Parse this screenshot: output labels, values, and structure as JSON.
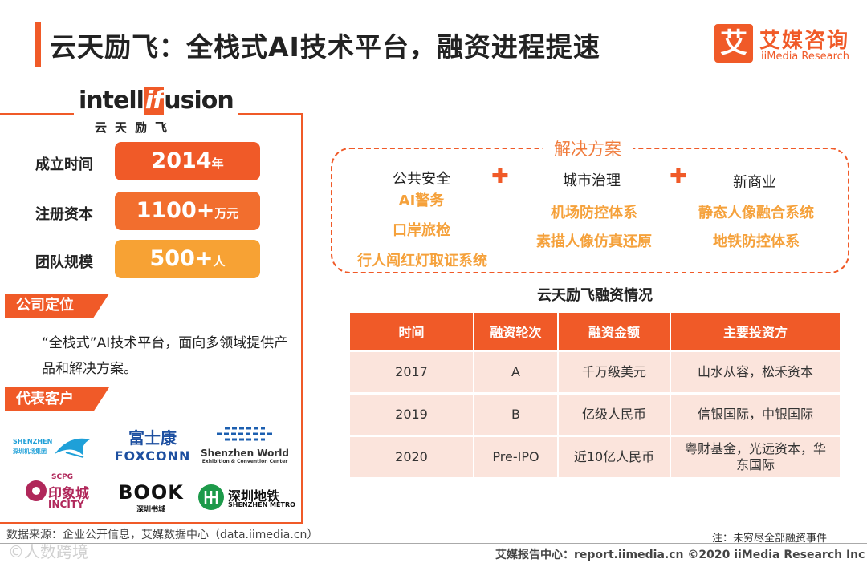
{
  "header": {
    "title": "云天励飞：全栈式AI技术平台，融资进程提速",
    "logo_mark": "艾",
    "logo_cn": "艾媒咨询",
    "logo_en": "iiMedia Research"
  },
  "brand": {
    "en_pre": "intell",
    "en_hl": "if",
    "en_post": "usion",
    "cn": "云天励飞"
  },
  "stats": [
    {
      "label": "成立时间",
      "value": "2014",
      "unit": "年",
      "color": "#f05a28"
    },
    {
      "label": "注册资本",
      "value": "1100+",
      "unit": "万元",
      "color": "#f26e2e"
    },
    {
      "label": "团队规模",
      "value": "500+",
      "unit": "人",
      "color": "#f7a234"
    }
  ],
  "positioning": {
    "tag": "公司定位",
    "text": "“全栈式”AI技术平台，面向多领域提供产品和解决方案。"
  },
  "clients": {
    "tag": "代表客户",
    "items": [
      {
        "name": "SHENZHEN",
        "sub": "深圳机场集团"
      },
      {
        "name": "富士康",
        "sub": "FOXCONN"
      },
      {
        "name": "Shenzhen World",
        "sub": "Exhibition & Convention Center"
      },
      {
        "name": "印象城",
        "sub": "INCITY",
        "extra": "SCPG"
      },
      {
        "name": "BOOK",
        "sub": "深圳书城"
      },
      {
        "name": "深圳地铁",
        "sub": "SHENZHEN METRO"
      }
    ]
  },
  "solutions": {
    "title": "解决方案",
    "plus": "✚",
    "columns": [
      {
        "head": "公共安全",
        "items": [
          "AI警务",
          "口岸旅检",
          "行人闯红灯取证系统"
        ]
      },
      {
        "head": "城市治理",
        "items": [
          "机场防控体系",
          "素描人像仿真还原"
        ]
      },
      {
        "head": "新商业",
        "items": [
          "静态人像融合系统",
          "地铁防控体系"
        ]
      }
    ]
  },
  "financing": {
    "title": "云天励飞融资情况",
    "headers": [
      "时间",
      "融资轮次",
      "融资金额",
      "主要投资方"
    ],
    "rows": [
      [
        "2017",
        "A",
        "千万级美元",
        "山水从容，松禾资本"
      ],
      [
        "2019",
        "B",
        "亿级人民币",
        "信银国际，中银国际"
      ],
      [
        "2020",
        "Pre-IPO",
        "近10亿人民币",
        "粤财基金，光远资本，华东国际"
      ]
    ]
  },
  "footer": {
    "source": "数据来源：企业公开信息，艾媒数据中心（data.iimedia.cn）",
    "note": "注：未穷尽全部融资事件",
    "report": "艾媒报告中心：report.iimedia.cn  ©2020  iiMedia Research  Inc",
    "watermark": "©人数跨境"
  }
}
